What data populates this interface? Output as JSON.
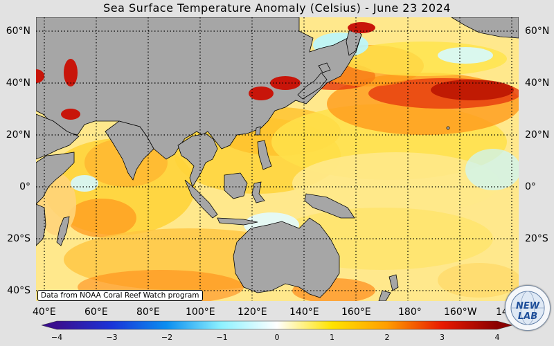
{
  "title": "Sea Surface Temperature Anomaly (Celsius) - June 23 2024",
  "credit": "Data from NOAA Coral Reef Watch program",
  "logo_text": "NEW LAB",
  "latitude_labels": [
    "60°N",
    "40°N",
    "20°N",
    "0°",
    "20°S",
    "40°S"
  ],
  "longitude_labels": [
    "40°E",
    "60°E",
    "80°E",
    "100°E",
    "120°E",
    "140°E",
    "160°E",
    "180°",
    "160°W",
    "140°W"
  ],
  "colorbar": {
    "ticks": [
      "−4",
      "−3",
      "−2",
      "−1",
      "0",
      "1",
      "2",
      "3",
      "4"
    ],
    "min": -4,
    "max": 4,
    "stops": [
      {
        "v": -4,
        "c": "#3a0f8f"
      },
      {
        "v": -3,
        "c": "#1a34d8"
      },
      {
        "v": -2,
        "c": "#0b8ff0"
      },
      {
        "v": -1,
        "c": "#8ff2ff"
      },
      {
        "v": 0,
        "c": "#ffffff"
      },
      {
        "v": 1,
        "c": "#ffe300"
      },
      {
        "v": 2,
        "c": "#ff9d00"
      },
      {
        "v": 3,
        "c": "#e81a00"
      },
      {
        "v": 4,
        "c": "#8a0000"
      }
    ]
  },
  "colors": {
    "land": "#a6a6a6",
    "warm_core": "#e62d0c",
    "warm": "#ff9d1a",
    "mild": "#ffe64d",
    "cool": "#b9f6ff"
  }
}
